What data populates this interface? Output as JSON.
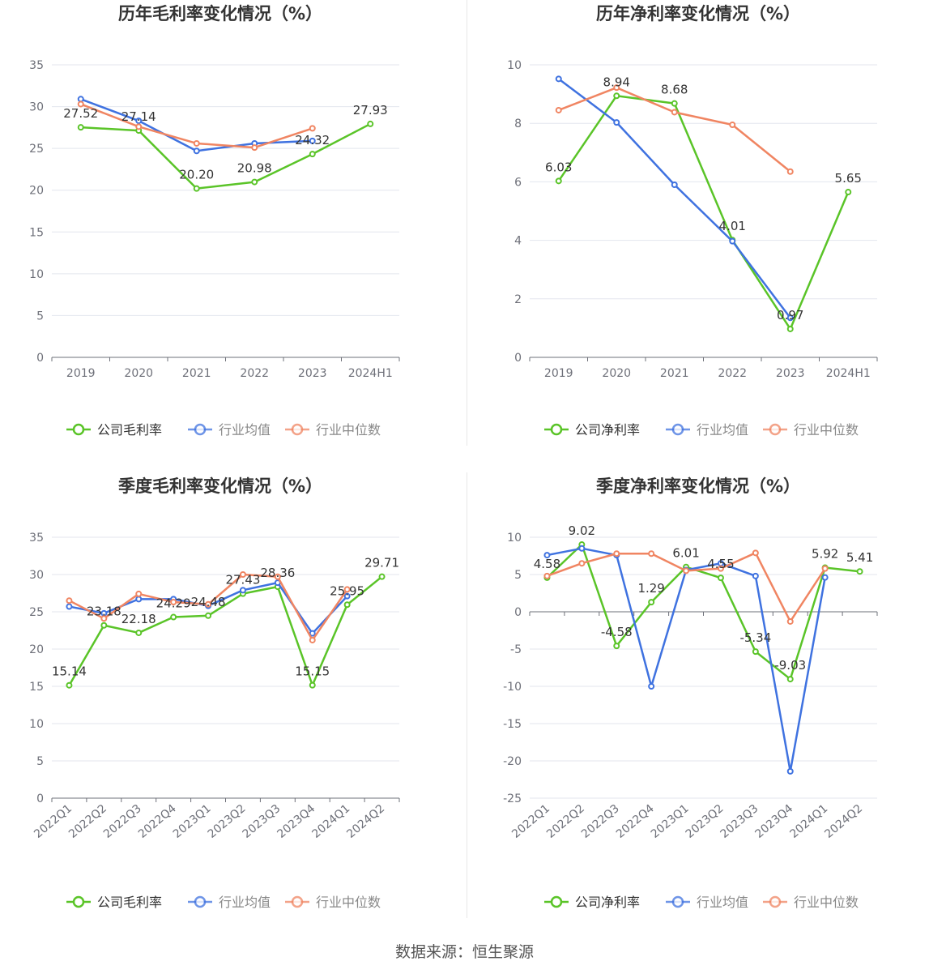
{
  "source_label": "数据来源：恒生聚源",
  "colors": {
    "company": "#5ac428",
    "industry_avg": "#3f72e0",
    "industry_median": "#f08562"
  },
  "chart_data": [
    {
      "type": "line",
      "title": "历年毛利率变化情况（%）",
      "categories": [
        "2019",
        "2020",
        "2021",
        "2022",
        "2023",
        "2024H1"
      ],
      "ylim": [
        0,
        35
      ],
      "yticks": [
        0,
        5,
        10,
        15,
        20,
        25,
        30,
        35
      ],
      "legend": [
        "公司毛利率",
        "行业均值",
        "行业中位数"
      ],
      "series": [
        {
          "name": "公司毛利率",
          "values": [
            27.52,
            27.14,
            20.2,
            20.98,
            24.32,
            27.93
          ],
          "labels": [
            "27.52",
            "27.14",
            "20.20",
            "20.98",
            "24.32",
            "27.93"
          ]
        },
        {
          "name": "行业均值",
          "values": [
            30.9,
            28.3,
            24.7,
            25.6,
            25.9,
            null
          ]
        },
        {
          "name": "行业中位数",
          "values": [
            30.3,
            27.6,
            25.6,
            25.1,
            27.4,
            null
          ]
        }
      ]
    },
    {
      "type": "line",
      "title": "历年净利率变化情况（%）",
      "categories": [
        "2019",
        "2020",
        "2021",
        "2022",
        "2023",
        "2024H1"
      ],
      "ylim": [
        0,
        10
      ],
      "yticks": [
        0,
        2,
        4,
        6,
        8,
        10
      ],
      "legend": [
        "公司净利率",
        "行业均值",
        "行业中位数"
      ],
      "series": [
        {
          "name": "公司净利率",
          "values": [
            6.03,
            8.94,
            8.68,
            4.01,
            0.97,
            5.65
          ],
          "labels": [
            "6.03",
            "8.94",
            "8.68",
            "4.01",
            "0.97",
            "5.65"
          ]
        },
        {
          "name": "行业均值",
          "values": [
            9.52,
            8.03,
            5.9,
            3.97,
            1.35,
            null
          ]
        },
        {
          "name": "行业中位数",
          "values": [
            8.45,
            9.22,
            8.38,
            7.95,
            6.35,
            null
          ]
        }
      ]
    },
    {
      "type": "line",
      "title": "季度毛利率变化情况（%）",
      "categories": [
        "2022Q1",
        "2022Q2",
        "2022Q3",
        "2022Q4",
        "2023Q1",
        "2023Q2",
        "2023Q3",
        "2023Q4",
        "2024Q1",
        "2024Q2"
      ],
      "ylim": [
        0,
        35
      ],
      "yticks": [
        0,
        5,
        10,
        15,
        20,
        25,
        30,
        35
      ],
      "legend": [
        "公司毛利率",
        "行业均值",
        "行业中位数"
      ],
      "series": [
        {
          "name": "公司毛利率",
          "values": [
            15.14,
            23.18,
            22.18,
            24.29,
            24.48,
            27.43,
            28.36,
            15.15,
            25.95,
            29.71
          ],
          "labels": [
            "15.14",
            "23.18",
            "22.18",
            "24.29",
            "24.48",
            "27.43",
            "28.36",
            "15.15",
            "25.95",
            "29.71"
          ]
        },
        {
          "name": "行业均值",
          "values": [
            25.7,
            24.8,
            26.7,
            26.7,
            25.8,
            27.9,
            28.9,
            22.1,
            27.1,
            null
          ]
        },
        {
          "name": "行业中位数",
          "values": [
            26.5,
            24.1,
            27.4,
            26.3,
            26.0,
            30.0,
            29.7,
            21.2,
            28.0,
            null
          ]
        }
      ]
    },
    {
      "type": "line",
      "title": "季度净利率变化情况（%）",
      "categories": [
        "2022Q1",
        "2022Q2",
        "2022Q3",
        "2022Q4",
        "2023Q1",
        "2023Q2",
        "2023Q3",
        "2023Q4",
        "2024Q1",
        "2024Q2"
      ],
      "ylim": [
        -25,
        10
      ],
      "yticks": [
        -25,
        -20,
        -15,
        -10,
        -5,
        0,
        5,
        10
      ],
      "legend": [
        "公司净利率",
        "行业均值",
        "行业中位数"
      ],
      "series": [
        {
          "name": "公司净利率",
          "values": [
            4.58,
            9.02,
            -4.58,
            1.29,
            6.01,
            4.55,
            -5.34,
            -9.03,
            5.92,
            5.41
          ],
          "labels": [
            "4.58",
            "9.02",
            "-4.58",
            "1.29",
            "6.01",
            "4.55",
            "-5.34",
            "-9.03",
            "5.92",
            "5.41"
          ]
        },
        {
          "name": "行业均值",
          "values": [
            7.6,
            8.5,
            7.6,
            -10.0,
            5.6,
            6.5,
            4.8,
            -21.4,
            4.6,
            null
          ]
        },
        {
          "name": "行业中位数",
          "values": [
            4.8,
            6.5,
            7.8,
            7.8,
            5.5,
            5.8,
            7.9,
            -1.3,
            5.8,
            null
          ]
        }
      ]
    }
  ]
}
